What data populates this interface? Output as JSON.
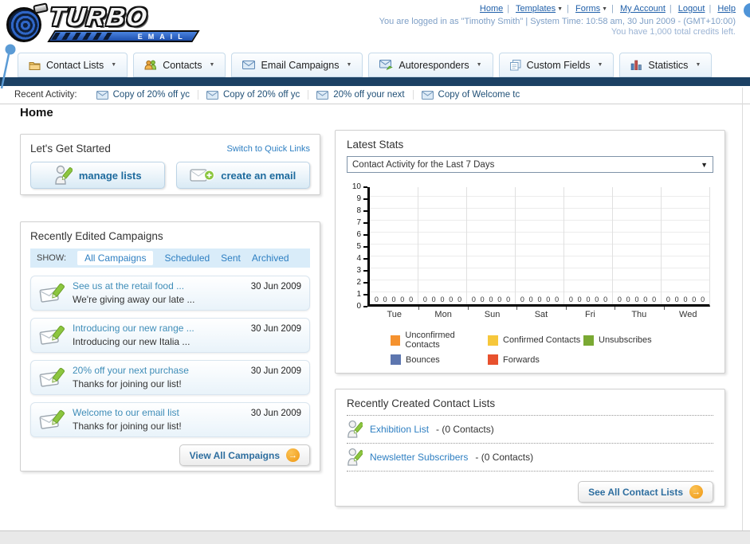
{
  "header": {
    "logo_title": "TURBO",
    "logo_subtitle": "EMAIL",
    "links": [
      {
        "label": "Home",
        "dropdown": false
      },
      {
        "label": "Templates",
        "dropdown": true
      },
      {
        "label": "Forms",
        "dropdown": true
      },
      {
        "label": "My Account",
        "dropdown": false
      },
      {
        "label": "Logout",
        "dropdown": false
      },
      {
        "label": "Help",
        "dropdown": false
      }
    ],
    "login_line": "You are logged in as \"Timothy Smith\" | System Time: 10:58 am, 30 Jun 2009 - (GMT+10:00)",
    "credits_line": "You have 1,000 total credits left."
  },
  "nav": {
    "tabs": [
      {
        "label": "Contact Lists",
        "icon": "folder-icon"
      },
      {
        "label": "Contacts",
        "icon": "people-icon"
      },
      {
        "label": "Email Campaigns",
        "icon": "envelope-icon"
      },
      {
        "label": "Autoresponders",
        "icon": "envelope-arrow-icon"
      },
      {
        "label": "Custom Fields",
        "icon": "pages-icon"
      },
      {
        "label": "Statistics",
        "icon": "bar-chart-icon"
      }
    ]
  },
  "recent_activity": {
    "label": "Recent Activity:",
    "items": [
      "Copy of 20% off yc",
      "Copy of 20% off yc",
      "20% off your next",
      "Copy of Welcome tc"
    ]
  },
  "page": {
    "title": "Home"
  },
  "get_started": {
    "title": "Let's Get Started",
    "switch_link": "Switch to Quick Links",
    "buttons": [
      {
        "label": "manage lists",
        "icon": "person-pencil-icon"
      },
      {
        "label": "create an email",
        "icon": "envelope-plus-icon"
      }
    ]
  },
  "campaigns": {
    "title": "Recently Edited Campaigns",
    "filter_label": "SHOW:",
    "filters": [
      "All Campaigns",
      "Scheduled",
      "Sent",
      "Archived"
    ],
    "active_filter": "All Campaigns",
    "items": [
      {
        "title": "See us at the retail food ...",
        "subtitle": "We're giving away our late ...",
        "date": "30 Jun 2009"
      },
      {
        "title": "Introducing our new range ...",
        "subtitle": "Introducing our new Italia ...",
        "date": "30 Jun 2009"
      },
      {
        "title": "20% off your next purchase",
        "subtitle": "Thanks for joining our list!",
        "date": "30 Jun 2009"
      },
      {
        "title": "Welcome to our email list",
        "subtitle": "Thanks for joining our list!",
        "date": "30 Jun 2009"
      }
    ],
    "view_all_label": "View All Campaigns"
  },
  "latest_stats": {
    "title": "Latest Stats",
    "dropdown_value": "Contact Activity for the Last 7 Days"
  },
  "chart_data": {
    "type": "bar",
    "title": "Contact Activity for the Last 7 Days",
    "categories": [
      "Tue",
      "Mon",
      "Sun",
      "Sat",
      "Fri",
      "Thu",
      "Wed"
    ],
    "series": [
      {
        "name": "Unconfirmed Contacts",
        "color": "#f5922f",
        "values": [
          0,
          0,
          0,
          0,
          0,
          0,
          0
        ]
      },
      {
        "name": "Confirmed Contacts",
        "color": "#f6c73b",
        "values": [
          0,
          0,
          0,
          0,
          0,
          0,
          0
        ]
      },
      {
        "name": "Unsubscribes",
        "color": "#7aa933",
        "values": [
          0,
          0,
          0,
          0,
          0,
          0,
          0
        ]
      },
      {
        "name": "Bounces",
        "color": "#5d76af",
        "values": [
          0,
          0,
          0,
          0,
          0,
          0,
          0
        ]
      },
      {
        "name": "Forwards",
        "color": "#e8512e",
        "values": [
          0,
          0,
          0,
          0,
          0,
          0,
          0
        ]
      }
    ],
    "ylim": [
      0,
      10
    ],
    "yticks": [
      0,
      1,
      2,
      3,
      4,
      5,
      6,
      7,
      8,
      9,
      10
    ],
    "grid": true,
    "legend_position": "bottom",
    "value_labels_shown": true
  },
  "contact_lists": {
    "title": "Recently Created Contact Lists",
    "items": [
      {
        "name": "Exhibition List",
        "count": "- (0 Contacts)"
      },
      {
        "name": "Newsletter Subscribers",
        "count": "- (0 Contacts)"
      }
    ],
    "see_all_label": "See All Contact Lists"
  }
}
